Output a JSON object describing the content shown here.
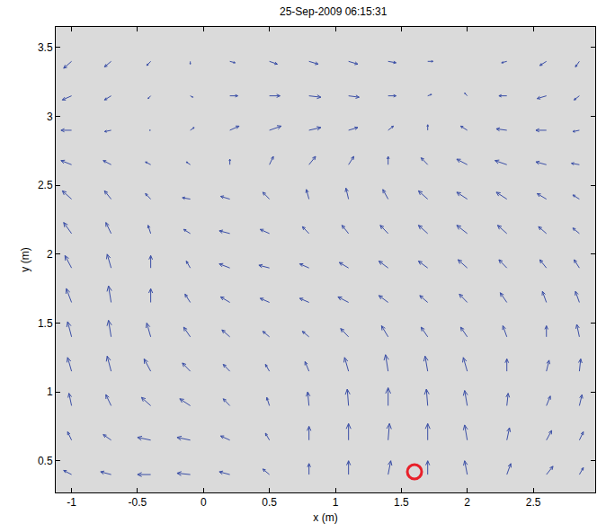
{
  "chart_data": {
    "type": "quiver",
    "title": "25-Sep-2009 06:15:31",
    "x_label": "x (m)",
    "y_label": "y (m)",
    "xlim": [
      -1.12,
      2.97
    ],
    "ylim": [
      0.27,
      3.65
    ],
    "xticks": [
      -1,
      -0.5,
      0,
      0.5,
      1,
      1.5,
      2,
      2.5
    ],
    "yticks": [
      0.5,
      1,
      1.5,
      2,
      2.5,
      3,
      3.5
    ],
    "grid": false,
    "field": {
      "color": "#3b4fa6",
      "x": [
        -1.0,
        -0.7,
        -0.4,
        -0.1,
        0.2,
        0.5,
        0.8,
        1.1,
        1.4,
        1.7,
        2.0,
        2.3,
        2.6,
        2.85
      ],
      "y": [
        0.4,
        0.65,
        0.9,
        1.15,
        1.4,
        1.65,
        1.9,
        2.15,
        2.4,
        2.65,
        2.9,
        3.15,
        3.4
      ],
      "u": [
        [
          -0.06,
          -0.08,
          -0.1,
          -0.1,
          -0.08,
          -0.05,
          0.0,
          0.0,
          0.02,
          0.0,
          -0.02,
          0.03,
          0.05,
          0.03
        ],
        [
          -0.03,
          -0.06,
          -0.1,
          -0.1,
          -0.07,
          -0.03,
          0.0,
          0.0,
          0.01,
          0.0,
          -0.02,
          0.02,
          0.04,
          0.03
        ],
        [
          -0.02,
          -0.04,
          -0.07,
          -0.08,
          -0.05,
          -0.02,
          -0.01,
          -0.01,
          0.0,
          -0.01,
          -0.02,
          0.01,
          0.03,
          0.02
        ],
        [
          -0.03,
          -0.03,
          -0.05,
          -0.06,
          -0.05,
          -0.03,
          -0.03,
          -0.03,
          -0.02,
          -0.02,
          -0.03,
          0.0,
          0.02,
          0.01
        ],
        [
          -0.03,
          -0.02,
          -0.03,
          -0.05,
          -0.06,
          -0.05,
          -0.05,
          -0.06,
          -0.05,
          -0.05,
          -0.05,
          -0.03,
          0.0,
          -0.02
        ],
        [
          -0.04,
          -0.02,
          0.0,
          -0.04,
          -0.07,
          -0.07,
          -0.07,
          -0.08,
          -0.07,
          -0.06,
          -0.06,
          -0.05,
          -0.03,
          -0.03
        ],
        [
          -0.05,
          -0.03,
          0.0,
          -0.03,
          -0.08,
          -0.08,
          -0.07,
          -0.07,
          -0.07,
          -0.07,
          -0.07,
          -0.06,
          -0.05,
          -0.04
        ],
        [
          -0.06,
          -0.04,
          -0.02,
          -0.05,
          -0.08,
          -0.07,
          -0.05,
          -0.05,
          -0.06,
          -0.07,
          -0.08,
          -0.07,
          -0.06,
          -0.05
        ],
        [
          -0.07,
          -0.05,
          -0.04,
          -0.06,
          -0.07,
          -0.05,
          -0.02,
          -0.02,
          -0.04,
          -0.07,
          -0.08,
          -0.08,
          -0.07,
          -0.05
        ],
        [
          -0.08,
          -0.06,
          -0.04,
          -0.03,
          0.0,
          0.03,
          0.05,
          0.04,
          0.0,
          -0.05,
          -0.08,
          -0.09,
          -0.08,
          -0.06
        ],
        [
          -0.08,
          -0.05,
          -0.01,
          0.03,
          0.07,
          0.09,
          0.09,
          0.07,
          0.04,
          0.0,
          -0.05,
          -0.08,
          -0.08,
          -0.05
        ],
        [
          -0.07,
          -0.05,
          -0.02,
          0.02,
          0.06,
          0.08,
          0.09,
          0.08,
          0.06,
          0.03,
          -0.02,
          -0.06,
          -0.07,
          -0.04
        ],
        [
          -0.06,
          -0.05,
          -0.03,
          0.0,
          0.04,
          0.06,
          0.07,
          0.07,
          0.06,
          0.04,
          0.0,
          -0.04,
          -0.05,
          -0.03
        ]
      ],
      "v": [
        [
          0.03,
          0.02,
          0.0,
          0.01,
          0.02,
          0.04,
          0.08,
          0.1,
          0.1,
          0.1,
          0.1,
          0.08,
          0.06,
          0.05
        ],
        [
          0.06,
          0.04,
          0.02,
          0.02,
          0.03,
          0.05,
          0.1,
          0.12,
          0.12,
          0.12,
          0.11,
          0.09,
          0.07,
          0.06
        ],
        [
          0.09,
          0.08,
          0.06,
          0.05,
          0.05,
          0.06,
          0.1,
          0.12,
          0.13,
          0.12,
          0.11,
          0.09,
          0.07,
          0.08
        ],
        [
          0.1,
          0.11,
          0.09,
          0.06,
          0.05,
          0.05,
          0.07,
          0.1,
          0.12,
          0.11,
          0.1,
          0.09,
          0.08,
          0.09
        ],
        [
          0.11,
          0.12,
          0.1,
          0.07,
          0.05,
          0.04,
          0.04,
          0.06,
          0.08,
          0.07,
          0.07,
          0.08,
          0.08,
          0.09
        ],
        [
          0.1,
          0.12,
          0.1,
          0.06,
          0.04,
          0.03,
          0.03,
          0.04,
          0.05,
          0.05,
          0.06,
          0.07,
          0.08,
          0.08
        ],
        [
          0.09,
          0.1,
          0.09,
          0.05,
          0.03,
          0.02,
          0.03,
          0.04,
          0.05,
          0.05,
          0.06,
          0.06,
          0.06,
          0.06
        ],
        [
          0.08,
          0.08,
          0.06,
          0.03,
          0.02,
          0.03,
          0.05,
          0.06,
          0.06,
          0.06,
          0.06,
          0.06,
          0.05,
          0.04
        ],
        [
          0.06,
          0.06,
          0.04,
          0.01,
          0.02,
          0.05,
          0.07,
          0.08,
          0.07,
          0.06,
          0.05,
          0.05,
          0.04,
          0.03
        ],
        [
          0.03,
          0.03,
          0.02,
          0.02,
          0.04,
          0.06,
          0.06,
          0.06,
          0.06,
          0.05,
          0.04,
          0.03,
          0.02,
          0.01
        ],
        [
          0.0,
          -0.01,
          0.0,
          0.02,
          0.03,
          0.03,
          0.02,
          0.02,
          0.03,
          0.04,
          0.03,
          0.01,
          0.0,
          -0.01
        ],
        [
          -0.03,
          -0.03,
          -0.02,
          -0.01,
          0.0,
          0.0,
          -0.01,
          -0.01,
          0.0,
          0.01,
          0.02,
          0.0,
          -0.02,
          -0.03
        ],
        [
          -0.05,
          -0.04,
          -0.03,
          -0.02,
          -0.01,
          -0.02,
          -0.02,
          -0.02,
          -0.01,
          0.0,
          0.0,
          -0.01,
          -0.03,
          -0.04
        ]
      ]
    },
    "markers": [
      {
        "x": 1.6,
        "y": 0.42,
        "color": "#e8202a",
        "marker": "circle-open"
      }
    ]
  }
}
